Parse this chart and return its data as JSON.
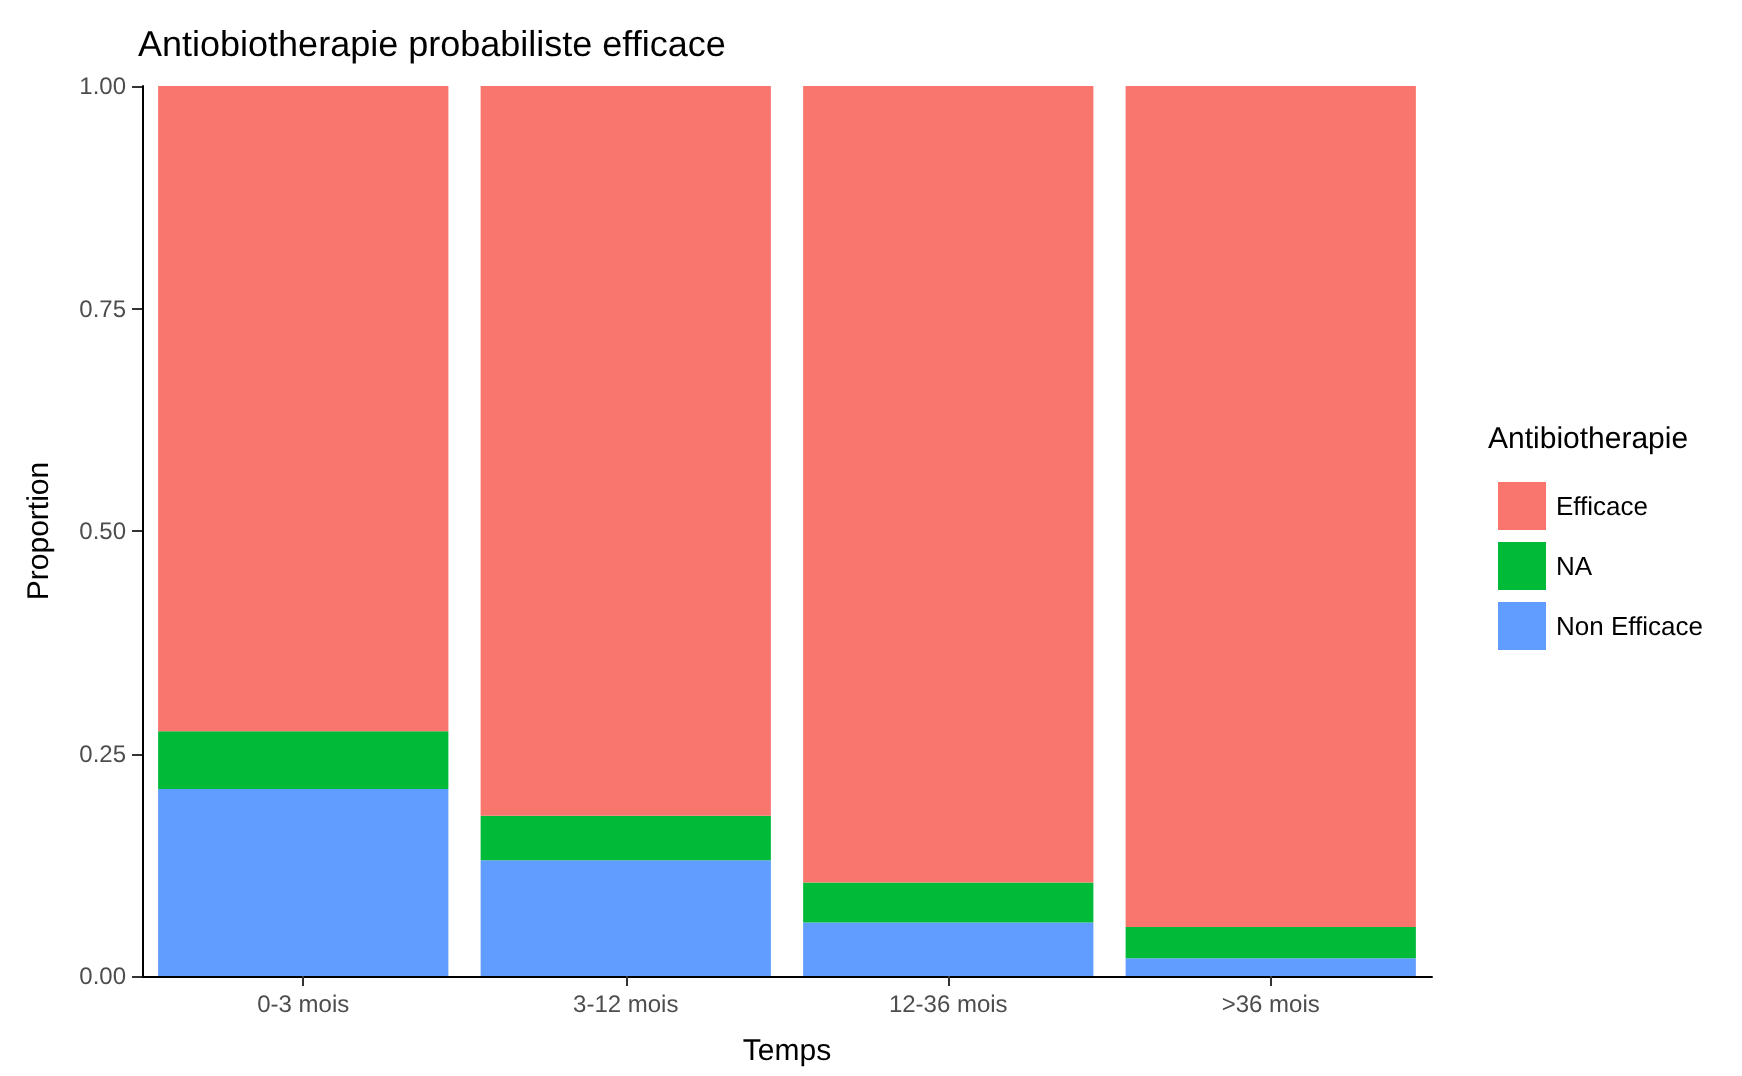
{
  "chart_data": {
    "type": "bar",
    "title": "Antiobiotherapie probabiliste efficace",
    "xlabel": "Temps",
    "ylabel": "Proportion",
    "legend_title": "Antibiotherapie",
    "categories": [
      "0-3 mois",
      "3-12 mois",
      "12-36 mois",
      ">36 mois"
    ],
    "series": [
      {
        "name": "Non Efficace",
        "color": "#619cff",
        "values": [
          0.21,
          0.13,
          0.06,
          0.02
        ]
      },
      {
        "name": "NA",
        "color": "#00ba38",
        "values": [
          0.065,
          0.05,
          0.045,
          0.035
        ]
      },
      {
        "name": "Efficace",
        "color": "#f8766d",
        "values": [
          0.725,
          0.82,
          0.895,
          0.945
        ]
      }
    ],
    "stacked": true,
    "ylim": [
      0,
      1
    ],
    "yticks": [
      {
        "value": 0,
        "label": "0.00"
      },
      {
        "value": 0.25,
        "label": "0.25"
      },
      {
        "value": 0.5,
        "label": "0.50"
      },
      {
        "value": 0.75,
        "label": "0.75"
      },
      {
        "value": 1,
        "label": "1.00"
      }
    ],
    "grid": false,
    "legend": "right"
  }
}
